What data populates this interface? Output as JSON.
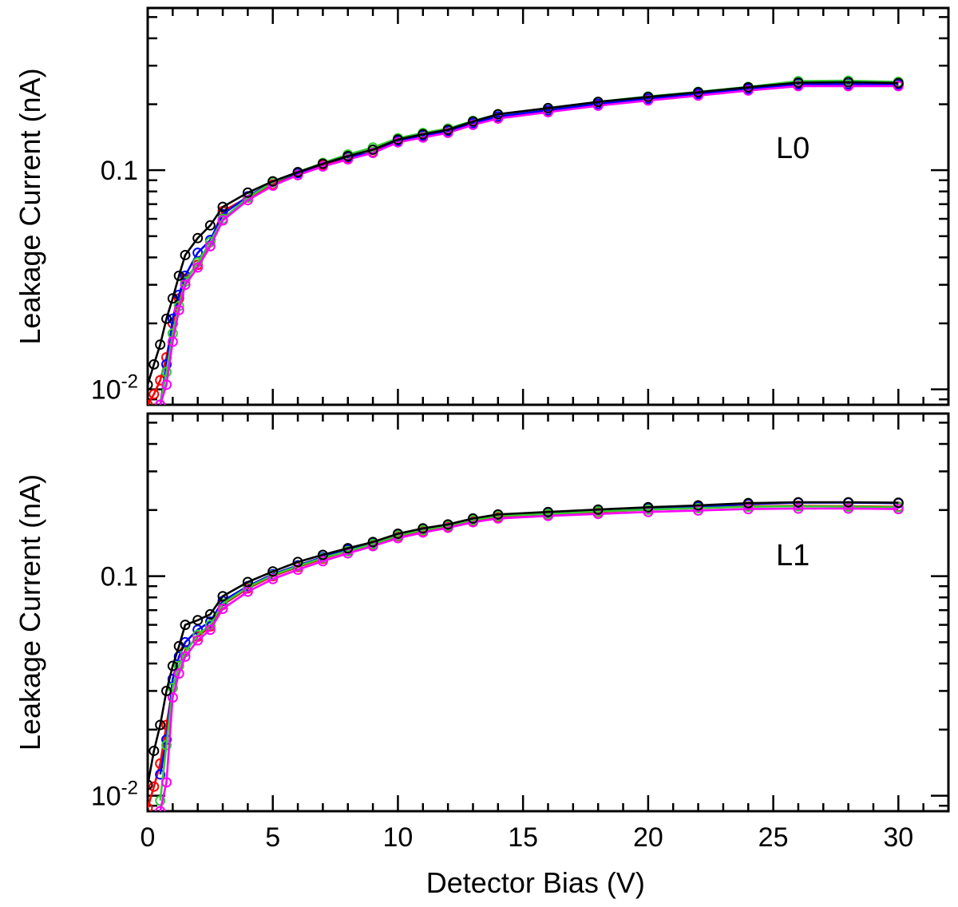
{
  "chart_data": [
    {
      "type": "line",
      "panel_label": "L0",
      "ylabel": "Leakage Current (nA)",
      "xlabel": "",
      "yscale": "log",
      "xlim": [
        0,
        32
      ],
      "ylim": [
        0.0085,
        0.55
      ],
      "yticks": [
        {
          "value": 0.01,
          "base": "10",
          "exp": "-2"
        },
        {
          "value": 0.1,
          "base": "0.1",
          "exp": ""
        }
      ],
      "legend": "none",
      "series": [
        {
          "color": "#ff0000",
          "x": [
            0,
            0.25,
            0.5,
            0.75,
            1,
            1.25,
            1.5,
            2,
            2.5,
            3,
            4,
            5,
            6,
            7,
            8,
            9,
            10,
            11,
            12,
            13,
            14,
            16,
            18,
            20,
            22,
            24,
            26,
            28,
            30
          ],
          "y": [
            0.0085,
            0.0095,
            0.011,
            0.014,
            0.02,
            0.026,
            0.032,
            0.037,
            0.047,
            0.065,
            0.075,
            0.086,
            0.095,
            0.105,
            0.113,
            0.121,
            0.135,
            0.142,
            0.149,
            0.162,
            0.174,
            0.186,
            0.199,
            0.211,
            0.221,
            0.233,
            0.245,
            0.245,
            0.245
          ]
        },
        {
          "color": "#0000ff",
          "x": [
            0.5,
            0.75,
            1,
            1.25,
            1.5,
            2,
            2.5,
            3,
            4,
            5,
            6,
            7,
            8,
            9,
            10,
            11,
            12,
            13,
            14,
            16,
            18,
            20,
            22,
            24,
            26,
            28,
            30
          ],
          "y": [
            0.0085,
            0.013,
            0.021,
            0.027,
            0.033,
            0.042,
            0.048,
            0.063,
            0.076,
            0.088,
            0.097,
            0.107,
            0.115,
            0.12,
            0.136,
            0.144,
            0.151,
            0.164,
            0.176,
            0.188,
            0.201,
            0.212,
            0.223,
            0.235,
            0.247,
            0.247,
            0.247
          ]
        },
        {
          "color": "#33cc33",
          "x": [
            0.5,
            0.75,
            1,
            1.25,
            1.5,
            2,
            2.5,
            3,
            4,
            5,
            6,
            7,
            8,
            9,
            10,
            11,
            12,
            13,
            14,
            16,
            18,
            20,
            22,
            24,
            26,
            28,
            30
          ],
          "y": [
            0.0085,
            0.012,
            0.018,
            0.024,
            0.031,
            0.038,
            0.047,
            0.06,
            0.075,
            0.088,
            0.098,
            0.108,
            0.118,
            0.127,
            0.14,
            0.148,
            0.155,
            0.168,
            0.18,
            0.192,
            0.205,
            0.217,
            0.228,
            0.24,
            0.255,
            0.256,
            0.253
          ]
        },
        {
          "color": "#ff00ff",
          "x": [
            0.5,
            0.75,
            1,
            1.25,
            1.5,
            2,
            2.5,
            3,
            4,
            5,
            6,
            7,
            8,
            9,
            10,
            11,
            12,
            13,
            14,
            16,
            18,
            20,
            22,
            24,
            26,
            28,
            30
          ],
          "y": [
            0.0085,
            0.0105,
            0.0165,
            0.023,
            0.03,
            0.036,
            0.045,
            0.059,
            0.073,
            0.085,
            0.095,
            0.104,
            0.112,
            0.12,
            0.134,
            0.141,
            0.148,
            0.161,
            0.172,
            0.184,
            0.197,
            0.208,
            0.219,
            0.231,
            0.242,
            0.242,
            0.242
          ]
        },
        {
          "color": "#000000",
          "x": [
            0,
            0.25,
            0.5,
            0.75,
            1,
            1.25,
            1.5,
            2,
            2.5,
            3,
            4,
            5,
            6,
            7,
            8,
            9,
            10,
            11,
            12,
            13,
            14,
            16,
            18,
            20,
            22,
            24,
            26,
            28,
            30
          ],
          "y": [
            0.0105,
            0.013,
            0.016,
            0.021,
            0.026,
            0.033,
            0.041,
            0.049,
            0.056,
            0.068,
            0.079,
            0.089,
            0.098,
            0.107,
            0.116,
            0.124,
            0.138,
            0.146,
            0.153,
            0.167,
            0.18,
            0.192,
            0.205,
            0.216,
            0.227,
            0.239,
            0.251,
            0.252,
            0.25
          ]
        }
      ]
    },
    {
      "type": "line",
      "panel_label": "L1",
      "ylabel": "Leakage Current (nA)",
      "xlabel": "Detector Bias (V)",
      "yscale": "log",
      "xlim": [
        0,
        32
      ],
      "ylim": [
        0.0085,
        0.55
      ],
      "xticks": [
        0,
        5,
        10,
        15,
        20,
        25,
        30
      ],
      "yticks": [
        {
          "value": 0.01,
          "base": "10",
          "exp": "-2"
        },
        {
          "value": 0.1,
          "base": "0.1",
          "exp": ""
        }
      ],
      "legend": "none",
      "series": [
        {
          "color": "#ff0000",
          "x": [
            0,
            0.25,
            0.5,
            0.75,
            1,
            1.25,
            1.5,
            2,
            2.5,
            3,
            4,
            5,
            6,
            7,
            8,
            9,
            10,
            11,
            12,
            13,
            14,
            16,
            18,
            20,
            22,
            24,
            26,
            28,
            30
          ],
          "y": [
            0.0088,
            0.011,
            0.014,
            0.021,
            0.031,
            0.039,
            0.046,
            0.053,
            0.059,
            0.074,
            0.088,
            0.1,
            0.11,
            0.12,
            0.13,
            0.139,
            0.152,
            0.161,
            0.168,
            0.178,
            0.186,
            0.191,
            0.196,
            0.201,
            0.204,
            0.208,
            0.209,
            0.208,
            0.207
          ]
        },
        {
          "color": "#0000ff",
          "x": [
            0.5,
            0.75,
            1,
            1.25,
            1.5,
            2,
            2.5,
            3,
            4,
            5,
            6,
            7,
            8,
            9,
            10,
            11,
            12,
            13,
            14,
            16,
            18,
            20,
            22,
            24,
            26,
            28,
            30
          ],
          "y": [
            0.0125,
            0.018,
            0.034,
            0.043,
            0.05,
            0.057,
            0.062,
            0.077,
            0.09,
            0.102,
            0.112,
            0.122,
            0.132,
            0.141,
            0.154,
            0.163,
            0.171,
            0.181,
            0.189,
            0.194,
            0.199,
            0.204,
            0.207,
            0.213,
            0.216,
            0.216,
            0.215
          ]
        },
        {
          "color": "#33cc33",
          "x": [
            0.5,
            0.75,
            1,
            1.25,
            1.5,
            2,
            2.5,
            3,
            4,
            5,
            6,
            7,
            8,
            9,
            10,
            11,
            12,
            13,
            14,
            16,
            18,
            20,
            22,
            24,
            26,
            28,
            30
          ],
          "y": [
            0.0095,
            0.017,
            0.031,
            0.039,
            0.045,
            0.054,
            0.06,
            0.075,
            0.089,
            0.101,
            0.111,
            0.121,
            0.13,
            0.14,
            0.153,
            0.162,
            0.17,
            0.18,
            0.188,
            0.192,
            0.197,
            0.201,
            0.204,
            0.207,
            0.208,
            0.207,
            0.206
          ]
        },
        {
          "color": "#ff00ff",
          "x": [
            0.5,
            0.75,
            1,
            1.25,
            1.5,
            2,
            2.5,
            3,
            4,
            5,
            6,
            7,
            8,
            9,
            10,
            11,
            12,
            13,
            14,
            16,
            18,
            20,
            22,
            24,
            26,
            28,
            30
          ],
          "y": [
            0.0085,
            0.0115,
            0.028,
            0.036,
            0.043,
            0.051,
            0.057,
            0.071,
            0.085,
            0.097,
            0.107,
            0.117,
            0.127,
            0.137,
            0.149,
            0.158,
            0.166,
            0.176,
            0.183,
            0.188,
            0.192,
            0.196,
            0.199,
            0.202,
            0.203,
            0.203,
            0.202
          ]
        },
        {
          "color": "#000000",
          "x": [
            0,
            0.25,
            0.5,
            0.75,
            1,
            1.25,
            1.5,
            2,
            2.5,
            3,
            4,
            5,
            6,
            7,
            8,
            9,
            10,
            11,
            12,
            13,
            14,
            16,
            18,
            20,
            22,
            24,
            26,
            28,
            30
          ],
          "y": [
            0.0112,
            0.016,
            0.021,
            0.03,
            0.039,
            0.048,
            0.06,
            0.063,
            0.067,
            0.081,
            0.094,
            0.105,
            0.116,
            0.125,
            0.134,
            0.143,
            0.156,
            0.165,
            0.172,
            0.183,
            0.191,
            0.196,
            0.201,
            0.206,
            0.21,
            0.215,
            0.217,
            0.217,
            0.216
          ]
        }
      ]
    }
  ]
}
